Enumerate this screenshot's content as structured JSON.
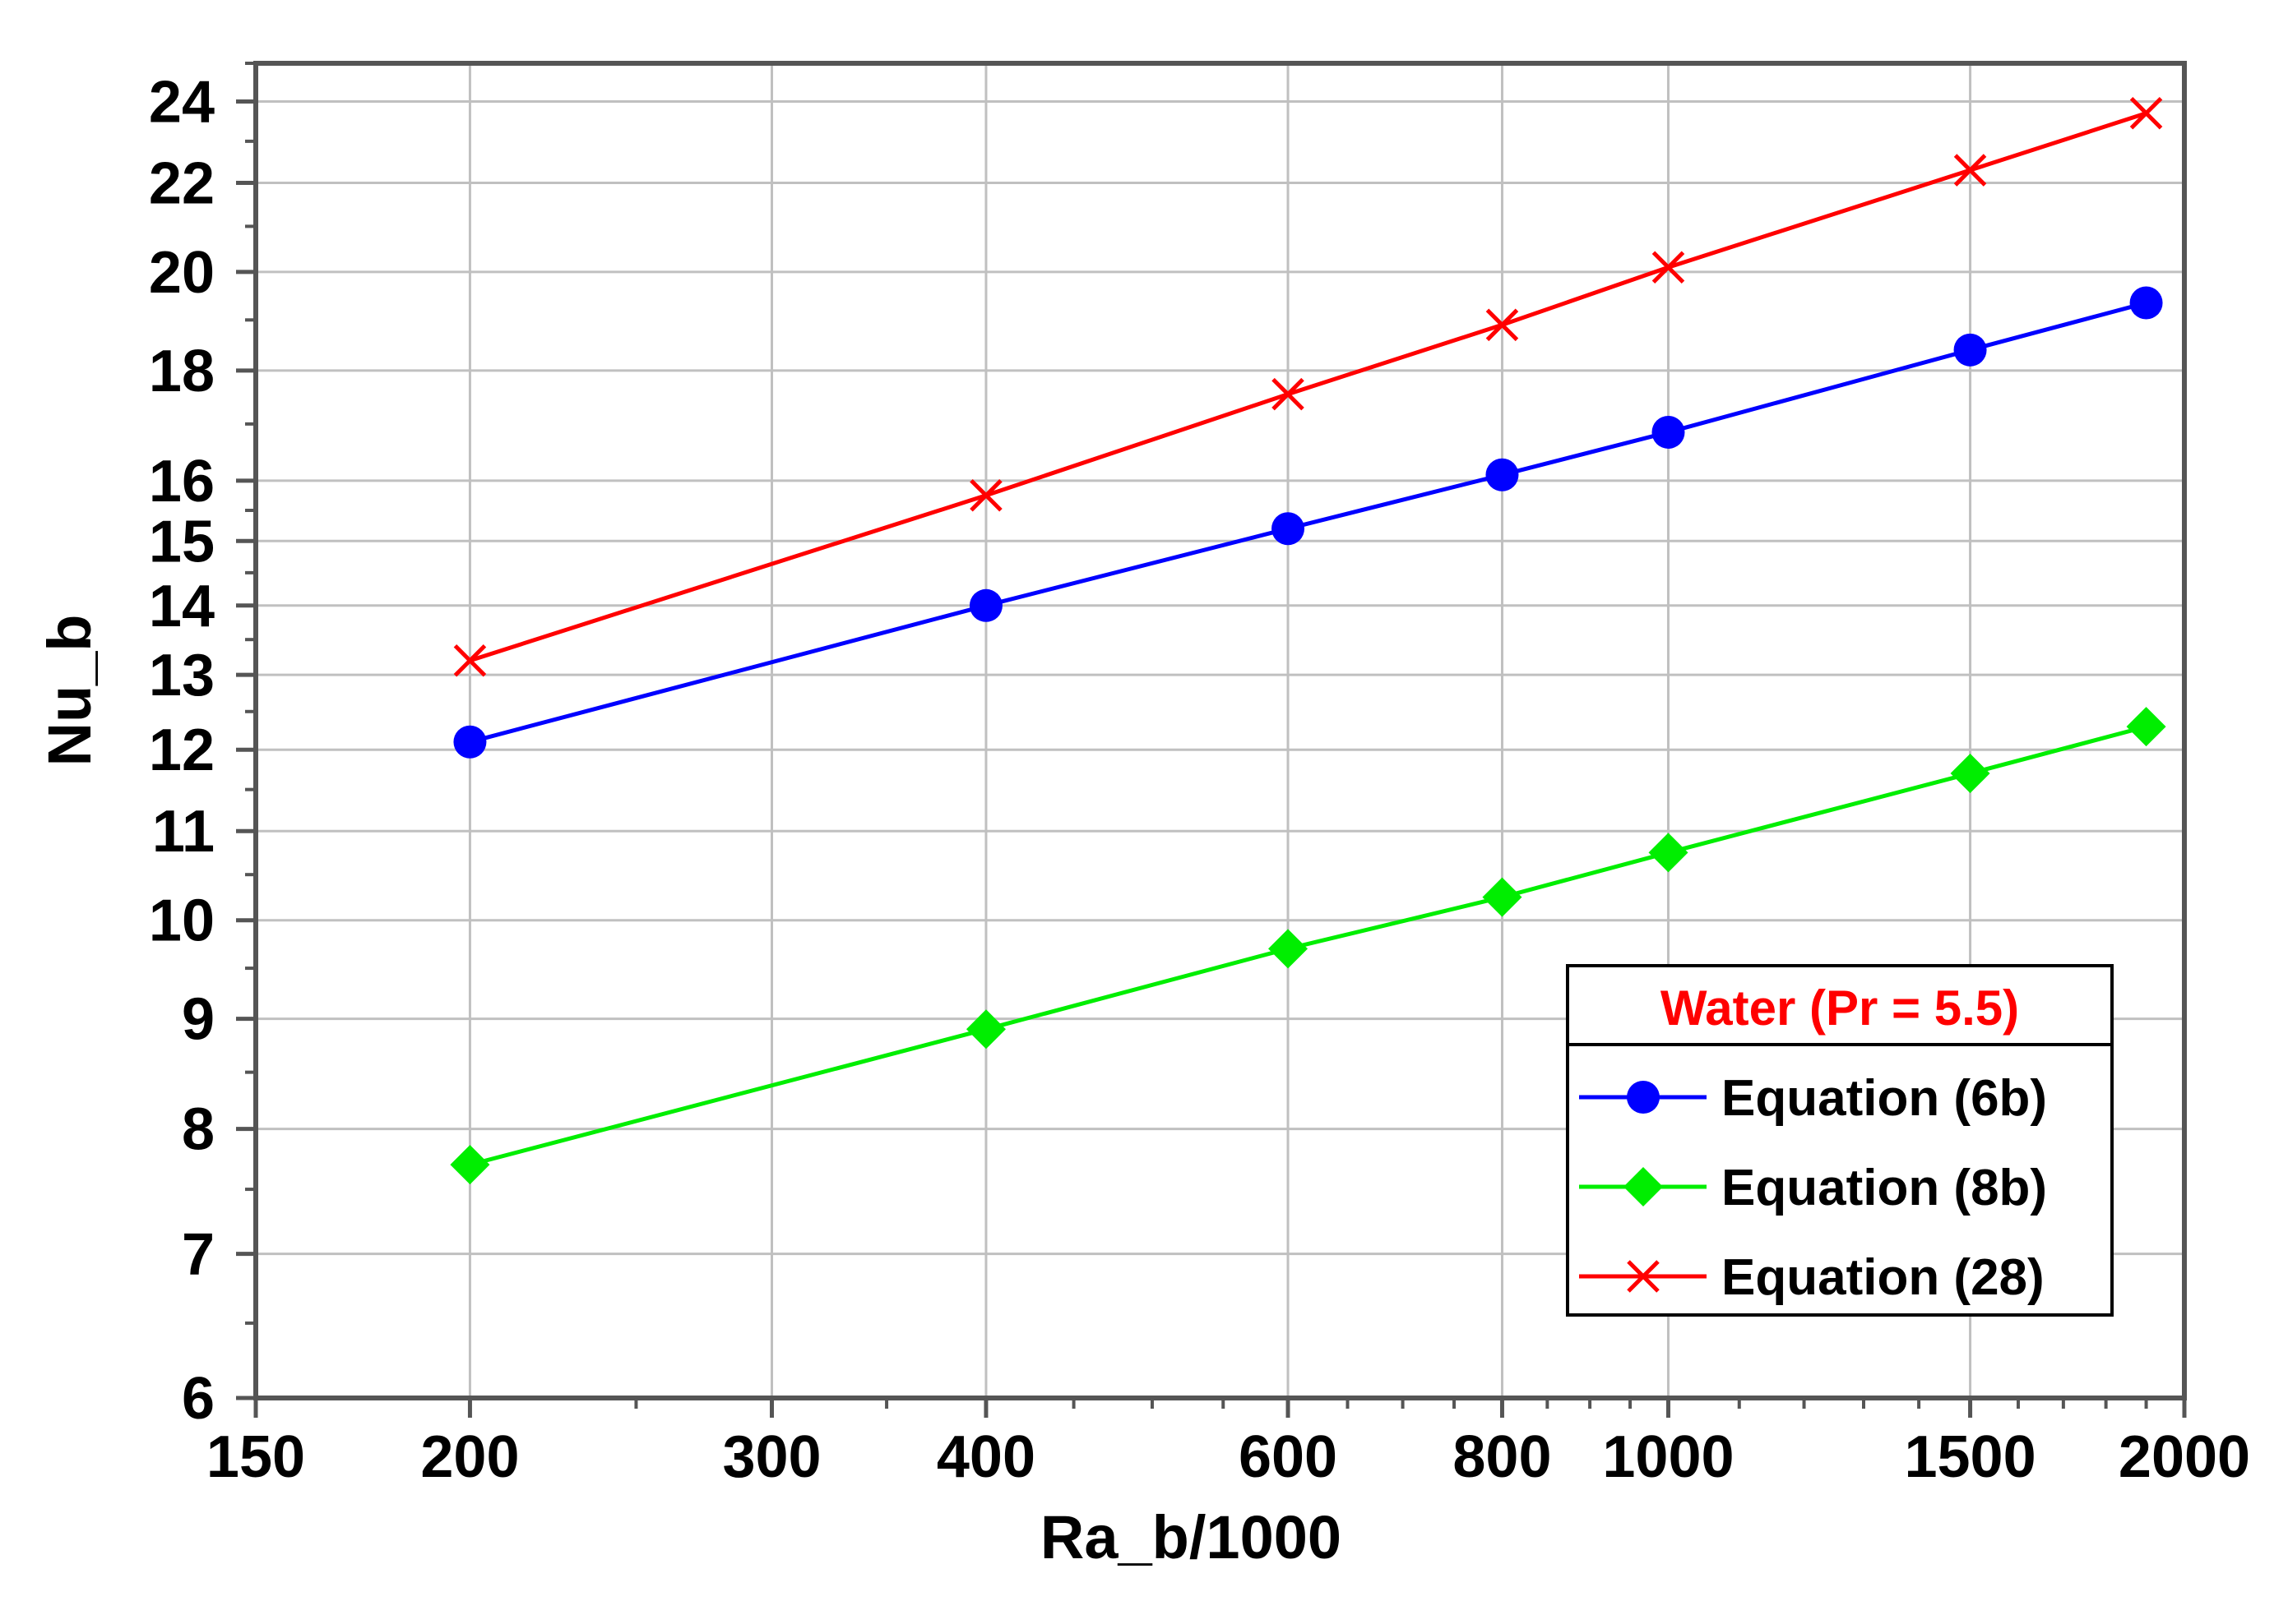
{
  "chart_data": {
    "type": "line",
    "title": "",
    "xlabel": "Ra_b/1000",
    "ylabel": "Nu_b",
    "x_scale": "log",
    "y_scale": "log",
    "xlim": [
      150,
      2000
    ],
    "ylim": [
      6,
      25
    ],
    "x_major_ticks": [
      150,
      200,
      300,
      400,
      600,
      800,
      1000,
      1500,
      2000
    ],
    "x_tick_labels": [
      "150",
      "200",
      "300",
      "400",
      "600",
      "800",
      "1000",
      "1500",
      "2000"
    ],
    "x_minor_ticks": [
      250,
      350,
      450,
      500,
      550,
      650,
      700,
      750,
      850,
      900,
      950,
      1100,
      1200,
      1300,
      1400,
      1600,
      1700,
      1800,
      1900
    ],
    "y_major_ticks": [
      6,
      7,
      8,
      9,
      10,
      11,
      12,
      13,
      14,
      15,
      16,
      18,
      20,
      22,
      24
    ],
    "y_tick_labels": [
      "6",
      "7",
      "8",
      "9",
      "10",
      "11",
      "12",
      "13",
      "14",
      "15",
      "16",
      "18",
      "20",
      "22",
      "24"
    ],
    "y_minor_ticks": [
      6.5,
      7.5,
      8.5,
      9.5,
      10.5,
      11.5,
      12.5,
      13.5,
      14.5,
      15.5,
      17,
      19,
      21,
      23,
      25
    ],
    "grid": true,
    "legend_title": "Water (Pr = 5.5)",
    "legend_title_color": "#ff0000",
    "legend_position": "lower-right",
    "x": [
      200,
      400,
      600,
      800,
      1000,
      1500,
      1900
    ],
    "series": [
      {
        "name": "Equation (6b)",
        "color": "#0000ff",
        "marker": "circle",
        "values": [
          12.1,
          14.0,
          15.2,
          16.1,
          16.85,
          18.4,
          19.35
        ]
      },
      {
        "name": "Equation (8b)",
        "color": "#00ee00",
        "marker": "diamond",
        "values": [
          7.7,
          8.9,
          9.7,
          10.25,
          10.75,
          11.7,
          12.3
        ]
      },
      {
        "name": "Equation (28)",
        "color": "#ff0000",
        "marker": "x",
        "values": [
          13.2,
          15.75,
          17.55,
          18.9,
          20.1,
          22.3,
          23.7
        ]
      }
    ]
  }
}
